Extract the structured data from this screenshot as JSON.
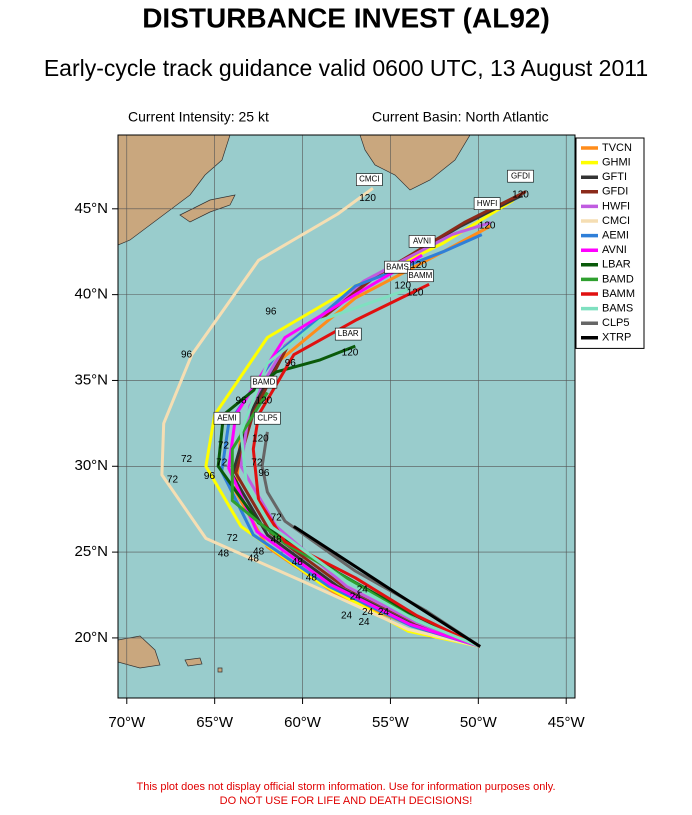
{
  "chart_data": {
    "type": "track",
    "title": "DISTURBANCE INVEST (AL92)",
    "subtitle": "Early-cycle track guidance valid 0600 UTC, 13 August 2011",
    "info_left": "Current Intensity: 25 kt",
    "info_right": "Current Basin: North Atlantic",
    "footer": [
      "This plot does not display official storm information. Use for information purposes only.",
      "DO NOT USE FOR LIFE AND DEATH DECISIONS!"
    ],
    "xlim": [
      -70.5,
      -44.5
    ],
    "ylim": [
      16.5,
      49.3
    ],
    "xticks": [
      {
        "value": -70,
        "label": "70°W"
      },
      {
        "value": -65,
        "label": "65°W"
      },
      {
        "value": -60,
        "label": "60°W"
      },
      {
        "value": -55,
        "label": "55°W"
      },
      {
        "value": -50,
        "label": "50°W"
      },
      {
        "value": -45,
        "label": "45°W"
      }
    ],
    "yticks": [
      {
        "value": 20,
        "label": "20°N"
      },
      {
        "value": 25,
        "label": "25°N"
      },
      {
        "value": 30,
        "label": "30°N"
      },
      {
        "value": 35,
        "label": "35°N"
      },
      {
        "value": 40,
        "label": "40°N"
      },
      {
        "value": 45,
        "label": "45°N"
      }
    ],
    "grid": true,
    "legend": "upper right",
    "series": [
      {
        "name": "TVCN",
        "color": "#ff8c1a",
        "x": [
          -49.9,
          -53.5,
          -58,
          -62,
          -63.8,
          -63.5,
          -61.5,
          -57,
          -52,
          -49.3
        ],
        "values": [
          19.5,
          20.6,
          22.5,
          25.3,
          28.5,
          32,
          36,
          39.8,
          42.5,
          44
        ]
      },
      {
        "name": "GHMI",
        "color": "#ffff00",
        "x": [
          -49.9,
          -54,
          -59,
          -63.5,
          -65.5,
          -65,
          -62,
          -57,
          -52,
          -48
        ],
        "values": [
          19.5,
          20.4,
          23.2,
          26.5,
          30,
          33,
          37.5,
          40.5,
          43,
          45.5
        ]
      },
      {
        "name": "GFTI",
        "color": "#333333",
        "x": [
          -49.9,
          -53.8,
          -58,
          -62,
          -64,
          -63,
          -61,
          -56,
          -51,
          -47.5
        ],
        "values": [
          19.5,
          20.8,
          23,
          26,
          29.5,
          33,
          37,
          41,
          44,
          45.8
        ]
      },
      {
        "name": "GFDI",
        "color": "#8b2a1a",
        "x": [
          -49.9,
          -53.6,
          -57.8,
          -61.8,
          -63.8,
          -62.8,
          -60.8,
          -55.8,
          -50.8,
          -47.3
        ],
        "values": [
          19.5,
          20.9,
          23.1,
          26.1,
          29.6,
          33.1,
          37.1,
          41.1,
          44.2,
          46
        ]
      },
      {
        "name": "HWFI",
        "color": "#c05ce0",
        "x": [
          -49.9,
          -53.5,
          -57.5,
          -61.5,
          -63.5,
          -63,
          -61,
          -56.5,
          -51.5,
          -49.3
        ],
        "values": [
          19.5,
          20.9,
          23,
          26.5,
          30,
          33.5,
          37,
          40.8,
          43.5,
          44.2
        ]
      },
      {
        "name": "CMCI",
        "color": "#f5deb3",
        "x": [
          -49.9,
          -54,
          -60,
          -65.5,
          -68,
          -67.9,
          -66.3,
          -62.5,
          -58,
          -56
        ],
        "values": [
          19.5,
          20.5,
          23.3,
          25.8,
          29.5,
          32.5,
          36.5,
          42,
          44.7,
          46.2
        ]
      },
      {
        "name": "AEMI",
        "color": "#2f7fd8",
        "x": [
          -49.9,
          -53.8,
          -58.5,
          -62.8,
          -64.6,
          -64.2,
          -61.5,
          -57,
          -52,
          -49.8
        ],
        "values": [
          19.5,
          20.7,
          23,
          26,
          29.7,
          32.5,
          36.5,
          40.5,
          42.5,
          43.5
        ]
      },
      {
        "name": "AVNI",
        "color": "#ff00ff",
        "x": [
          -49.9,
          -53.9,
          -58.4,
          -62.6,
          -64.2,
          -63.8,
          -61,
          -57,
          -53.2
        ],
        "values": [
          19.5,
          20.8,
          23.1,
          26.2,
          29.9,
          33,
          37.5,
          40,
          42.3
        ]
      },
      {
        "name": "LBAR",
        "color": "#0a5a0a",
        "x": [
          -49.9,
          -54,
          -58,
          -62.5,
          -64.8,
          -64.5,
          -61.5,
          -59,
          -57
        ],
        "values": [
          19.5,
          21.5,
          23.8,
          26.7,
          30,
          33,
          35.5,
          36.2,
          37
        ]
      },
      {
        "name": "BAMD",
        "color": "#2fa02f",
        "x": [
          -49.9,
          -53.5,
          -57,
          -61,
          -64,
          -64,
          -62.5,
          -62
        ],
        "values": [
          19.5,
          21,
          23.2,
          25.5,
          28,
          31,
          33.5,
          34.3
        ]
      },
      {
        "name": "BAMM",
        "color": "#e01010",
        "x": [
          -49.9,
          -53.5,
          -57,
          -61,
          -62.5,
          -62.8,
          -62.5,
          -60.5,
          -57,
          -52.8
        ],
        "values": [
          19.5,
          21.3,
          23.5,
          25.6,
          28,
          31,
          33,
          36.5,
          38.5,
          40.6
        ]
      },
      {
        "name": "BAMS",
        "color": "#7fe0c0",
        "x": [
          -49.9,
          -53.5,
          -57.5,
          -61.8,
          -63.2,
          -63.5,
          -62,
          -59,
          -54
        ],
        "values": [
          19.5,
          21,
          23.3,
          26.5,
          29,
          32,
          36,
          38.5,
          40.3
        ]
      },
      {
        "name": "CLP5",
        "color": "#666666",
        "x": [
          -49.9,
          -53,
          -57,
          -61,
          -62,
          -62.3,
          -62
        ],
        "values": [
          19.5,
          21.6,
          23.9,
          26.8,
          28.5,
          30,
          32
        ]
      },
      {
        "name": "XTRP",
        "color": "#000000",
        "x": [
          -49.9,
          -54.5,
          -59,
          -60.5
        ],
        "values": [
          19.5,
          22.5,
          25.5,
          26.5
        ]
      }
    ],
    "label_boxes": [
      {
        "text": "GFDI",
        "x": -47.6,
        "y": 46.9
      },
      {
        "text": "HWFI",
        "x": -49.5,
        "y": 45.3
      },
      {
        "text": "CMCI",
        "x": -56.2,
        "y": 46.7
      },
      {
        "text": "AVNI",
        "x": -53.2,
        "y": 43.1
      },
      {
        "text": "BAMS",
        "x": -54.6,
        "y": 41.6
      },
      {
        "text": "BAMM",
        "x": -53.3,
        "y": 41.1
      },
      {
        "text": "LBAR",
        "x": -57.4,
        "y": 37.7
      },
      {
        "text": "BAMD",
        "x": -62.2,
        "y": 34.9
      },
      {
        "text": "AEMI",
        "x": -64.3,
        "y": 32.8
      },
      {
        "text": "CLP5",
        "x": -62,
        "y": 32.8
      }
    ],
    "hour_labels": [
      {
        "text": "120",
        "x": -56.3,
        "y": 45.6
      },
      {
        "text": "120",
        "x": -47.6,
        "y": 45.8
      },
      {
        "text": "120",
        "x": -49.5,
        "y": 44
      },
      {
        "text": "120",
        "x": -53.4,
        "y": 41.7
      },
      {
        "text": "120",
        "x": -54.3,
        "y": 40.5
      },
      {
        "text": "120",
        "x": -53.6,
        "y": 40.1
      },
      {
        "text": "120",
        "x": -57.3,
        "y": 36.6
      },
      {
        "text": "120",
        "x": -62.2,
        "y": 33.8
      },
      {
        "text": "120",
        "x": -62.4,
        "y": 31.6
      },
      {
        "text": "96",
        "x": -66.6,
        "y": 36.5
      },
      {
        "text": "96",
        "x": -61.8,
        "y": 39
      },
      {
        "text": "96",
        "x": -60.7,
        "y": 36
      },
      {
        "text": "96",
        "x": -63.5,
        "y": 33.8
      },
      {
        "text": "96",
        "x": -65.3,
        "y": 29.4
      },
      {
        "text": "96",
        "x": -62.2,
        "y": 29.6
      },
      {
        "text": "72",
        "x": -67.4,
        "y": 29.2
      },
      {
        "text": "72",
        "x": -66.6,
        "y": 30.4
      },
      {
        "text": "72",
        "x": -64.5,
        "y": 31.2
      },
      {
        "text": "72",
        "x": -64.6,
        "y": 30.2
      },
      {
        "text": "72",
        "x": -62.6,
        "y": 30.2
      },
      {
        "text": "72",
        "x": -64,
        "y": 25.8
      },
      {
        "text": "72",
        "x": -61.5,
        "y": 27
      },
      {
        "text": "48",
        "x": -64.5,
        "y": 24.9
      },
      {
        "text": "48",
        "x": -62.8,
        "y": 24.6
      },
      {
        "text": "48",
        "x": -62.5,
        "y": 25
      },
      {
        "text": "48",
        "x": -60.3,
        "y": 24.4
      },
      {
        "text": "48",
        "x": -59.5,
        "y": 23.5
      },
      {
        "text": "48",
        "x": -61.5,
        "y": 25.7
      },
      {
        "text": "24",
        "x": -57.5,
        "y": 21.3
      },
      {
        "text": "24",
        "x": -56.3,
        "y": 21.5
      },
      {
        "text": "24",
        "x": -55.4,
        "y": 21.5
      },
      {
        "text": "24",
        "x": -56.5,
        "y": 20.9
      },
      {
        "text": "24",
        "x": -57,
        "y": 22.4
      },
      {
        "text": "24",
        "x": -56.6,
        "y": 22.8
      }
    ]
  }
}
